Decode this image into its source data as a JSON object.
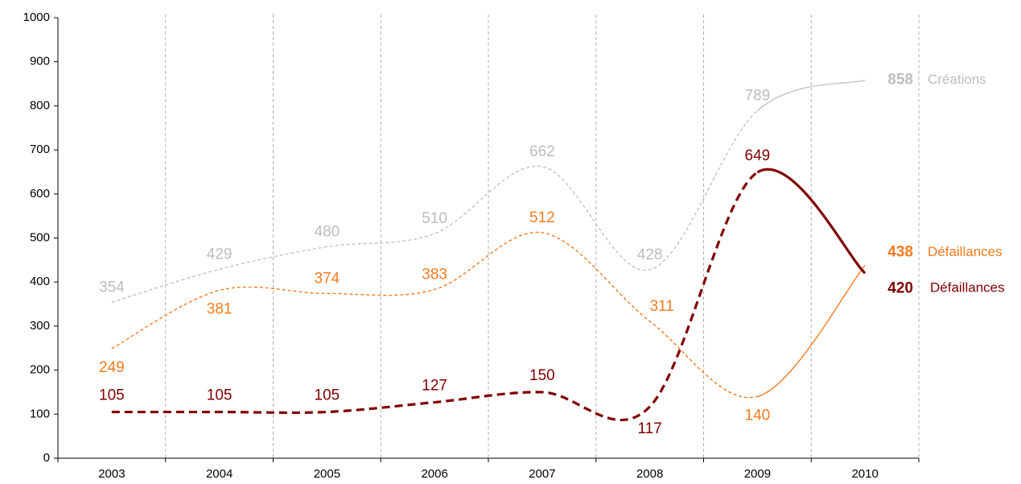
{
  "chart_data": {
    "type": "line",
    "categories": [
      "2003",
      "2004",
      "2005",
      "2006",
      "2007",
      "2008",
      "2009",
      "2010"
    ],
    "ylim": [
      0,
      1000
    ],
    "yticks": [
      0,
      100,
      200,
      300,
      400,
      500,
      600,
      700,
      800,
      900,
      1000
    ],
    "grid": true,
    "series": [
      {
        "name": "Créations",
        "color": "#bdbdbd",
        "values": [
          354,
          429,
          480,
          510,
          662,
          428,
          789,
          858
        ]
      },
      {
        "name": "Défaillances",
        "color": "#f47b20",
        "values": [
          249,
          381,
          374,
          383,
          512,
          311,
          140,
          438
        ]
      },
      {
        "name": "Défaillances",
        "color": "#800000",
        "values": [
          105,
          105,
          105,
          127,
          150,
          117,
          649,
          420
        ]
      }
    ]
  }
}
